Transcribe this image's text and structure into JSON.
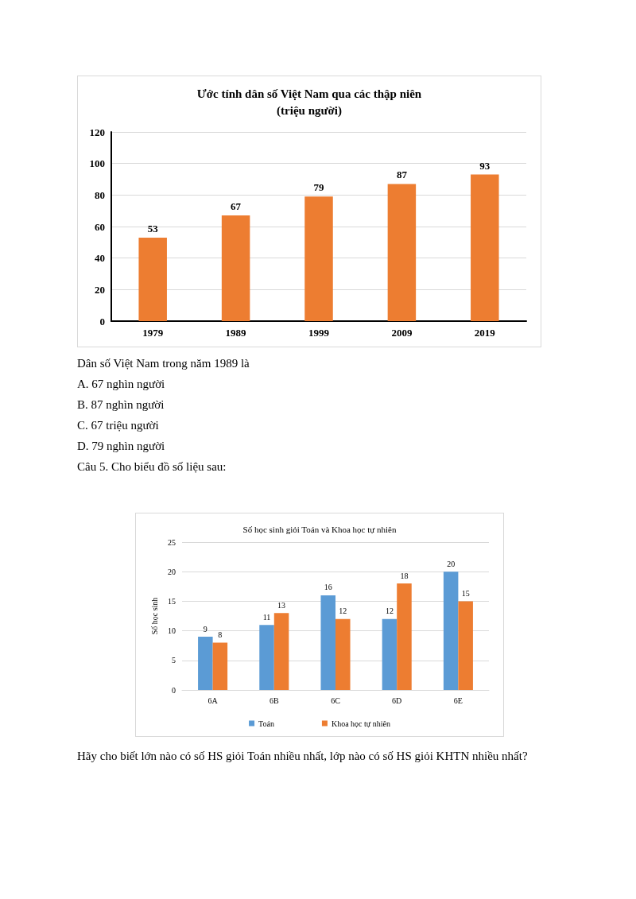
{
  "chart_data": [
    {
      "type": "bar",
      "title": "Ước tính dân số Việt Nam qua các thập niên\n(triệu người)",
      "categories": [
        "1979",
        "1989",
        "1999",
        "2009",
        "2019"
      ],
      "values": [
        53,
        67,
        79,
        87,
        93
      ],
      "color": "#ed7d31",
      "ylim": [
        0,
        120
      ],
      "yticks": [
        0,
        20,
        40,
        60,
        80,
        100,
        120
      ],
      "grid": "y",
      "data_labels": true,
      "annotations": [
        "Dân số Việt Nam trong năm 1989 là",
        "A. 67 nghìn người",
        "B. 87 nghìn người",
        "C. 67 triệu người",
        "D. 79 nghìn người",
        "Câu 5. Cho biểu đồ số liệu sau:"
      ]
    },
    {
      "type": "bar",
      "title": "Số học sinh giỏi Toán và Khoa học tự nhiên",
      "ylabel": "Số học sinh",
      "categories": [
        "6A",
        "6B",
        "6C",
        "6D",
        "6E"
      ],
      "series": [
        {
          "name": "Toán",
          "color": "#5b9bd5",
          "values": [
            9,
            11,
            16,
            12,
            20
          ]
        },
        {
          "name": "Khoa học tự nhiên",
          "color": "#ed7d31",
          "values": [
            8,
            13,
            12,
            18,
            15
          ]
        }
      ],
      "ylim": [
        0,
        25
      ],
      "yticks": [
        0,
        5,
        10,
        15,
        20,
        25
      ],
      "grid": "y",
      "legend": "bottom",
      "data_labels": true,
      "annotations": [
        "Hãy cho biết lớn nào có số HS giỏi Toán nhiều nhất, lớp nào có số HS giỏi KHTN nhiều nhất?"
      ]
    }
  ]
}
